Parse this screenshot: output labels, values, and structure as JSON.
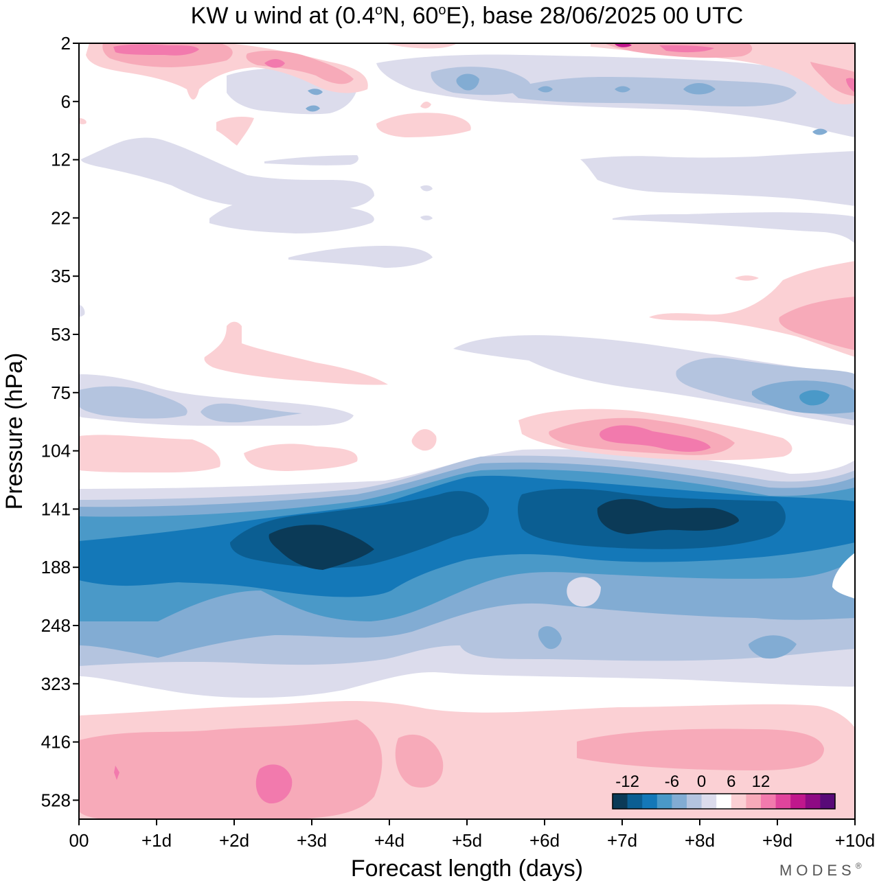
{
  "chart_data": {
    "type": "contour",
    "title_main": "KW u wind at (0.4",
    "title_lat_unit": "N, 60",
    "title_lon_unit": "E),  base 28/06/2025  00 UTC",
    "title_degree": "o",
    "xlabel": "Forecast length (days)",
    "ylabel": "Pressure (hPa)",
    "x_ticks": [
      "00",
      "+1d",
      "+2d",
      "+3d",
      "+4d",
      "+5d",
      "+6d",
      "+7d",
      "+8d",
      "+9d",
      "+10d"
    ],
    "x_range_days": [
      0,
      10
    ],
    "y_ticks": [
      "2",
      "6",
      "12",
      "22",
      "35",
      "53",
      "75",
      "104",
      "141",
      "188",
      "248",
      "323",
      "416",
      "528"
    ],
    "y_scale": "log-pressure, top 2 hPa, bottom ~700 hPa",
    "colorbar": {
      "labels": [
        "-12",
        "-6",
        "0",
        "6",
        "12"
      ],
      "label_bins": [
        1,
        4,
        6,
        8,
        10
      ],
      "bins": [
        {
          "range": "< -14",
          "color": "#0b3a57"
        },
        {
          "range": "-14 to -12",
          "color": "#0b5e92"
        },
        {
          "range": "-12 to -10",
          "color": "#1478b8"
        },
        {
          "range": "-10 to -8",
          "color": "#4a99c8"
        },
        {
          "range": "-8 to -6",
          "color": "#82acd3"
        },
        {
          "range": "-6 to -4",
          "color": "#b4c4df"
        },
        {
          "range": "-4 to -2",
          "color": "#dcdcec"
        },
        {
          "range": "-2 to 2",
          "color": "#ffffff"
        },
        {
          "range": "2 to 4",
          "color": "#fbd0d4"
        },
        {
          "range": "4 to 6",
          "color": "#f7aab9"
        },
        {
          "range": "6 to 8",
          "color": "#f27aad"
        },
        {
          "range": "8 to 10",
          "color": "#e0449c"
        },
        {
          "range": "10 to 12",
          "color": "#c0178c"
        },
        {
          "range": "12 to 14",
          "color": "#8e0a84"
        },
        {
          "range": "> 14",
          "color": "#580a78"
        }
      ]
    },
    "features": [
      {
        "region": "easterly jet core",
        "pressure_hPa": [
          120,
          200
        ],
        "days": [
          0,
          10
        ],
        "u_ms": -14
      },
      {
        "region": "strongest easterlies",
        "pressure_hPa": [
          150,
          180
        ],
        "days": [
          2.5,
          3.8
        ],
        "u_ms": -16
      },
      {
        "region": "strongest easterlies",
        "pressure_hPa": [
          130,
          160
        ],
        "days": [
          6.7,
          8.5
        ],
        "u_ms": -16
      },
      {
        "region": "westerly layer",
        "pressure_hPa": [
          350,
          700
        ],
        "days": [
          0,
          10
        ],
        "u_ms": 5
      },
      {
        "region": "westerly maximum",
        "pressure_hPa": [
          90,
          115
        ],
        "days": [
          6.5,
          8.2
        ],
        "u_ms": 8
      },
      {
        "region": "easterly patch",
        "pressure_hPa": [
          65,
          90
        ],
        "days": [
          8.7,
          10
        ],
        "u_ms": -10
      },
      {
        "region": "upper westerlies",
        "pressure_hPa": [
          2,
          6
        ],
        "days": [
          0.3,
          3.6
        ],
        "u_ms": 6
      }
    ]
  },
  "logo_text": "MODES",
  "logo_mark": "®"
}
